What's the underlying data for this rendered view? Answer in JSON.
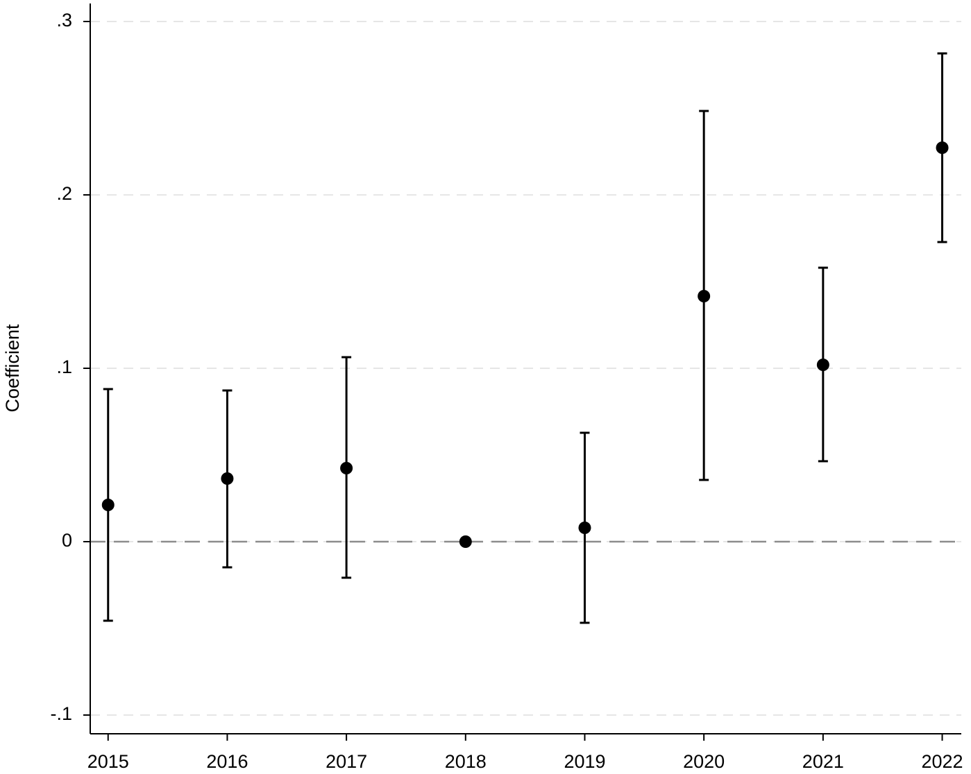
{
  "chart_data": {
    "type": "coefplot",
    "y_label": "Coefficient",
    "x": [
      2015,
      2016,
      2017,
      2018,
      2019,
      2020,
      2021,
      2022
    ],
    "series": [
      {
        "color": "#000000",
        "values": [
          0.0212,
          0.0364,
          0.0424,
          0,
          0.008,
          0.1416,
          0.102,
          0.2272
        ],
        "lower": [
          -0.0456,
          -0.0148,
          -0.0208,
          null,
          -0.0468,
          0.0356,
          0.0464,
          0.1728
        ],
        "upper": [
          0.088,
          0.0872,
          0.1064,
          null,
          0.0628,
          0.2484,
          0.158,
          0.2816
        ]
      }
    ],
    "xlim": [
      2014.85,
      2022.16
    ],
    "xticks": [
      2015,
      2016,
      2017,
      2018,
      2019,
      2020,
      2021,
      2022
    ],
    "ylim": [
      -0.1108,
      0.3104
    ],
    "yticks": [
      {
        "value": 0.3,
        "label": ".3"
      },
      {
        "value": 0.2,
        "label": ".2"
      },
      {
        "value": 0.1,
        "label": ".1"
      },
      0,
      {
        "value": -0.1,
        "label": "-.1"
      }
    ],
    "grid": true,
    "reference_line": 0
  }
}
